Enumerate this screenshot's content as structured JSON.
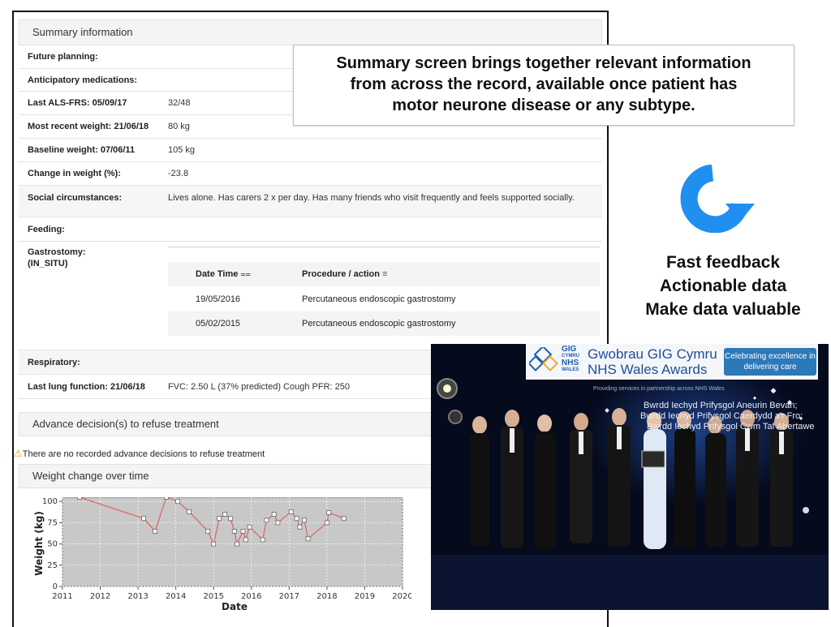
{
  "summary": {
    "title": "Summary information",
    "rows": [
      {
        "label": "Future planning:",
        "value": ""
      },
      {
        "label": "Anticipatory medications:",
        "value": ""
      },
      {
        "label": "Last ALS-FRS: 05/09/17",
        "value": "32/48"
      },
      {
        "label": "Most recent weight: 21/06/18",
        "value": "80 kg"
      },
      {
        "label": "Baseline weight: 07/06/11",
        "value": "105 kg"
      },
      {
        "label": "Change in weight (%):",
        "value": "-23.8"
      },
      {
        "label": "Social circumstances:",
        "value": "Lives alone. Has carers 2 x per day. Has many friends who visit frequently and feels supported socially."
      },
      {
        "label": "Feeding:",
        "value": ""
      }
    ],
    "gastrostomy": {
      "label": "Gastrostomy:",
      "sublabel": "(IN_SITU)",
      "columns": [
        "Date Time",
        "Procedure / action"
      ],
      "sort_icon_1": "⩵",
      "sort_icon_2": "≡",
      "rows": [
        {
          "date": "19/05/2016",
          "procedure": "Percutaneous endoscopic gastrostomy"
        },
        {
          "date": "05/02/2015",
          "procedure": "Percutaneous endoscopic gastrostomy"
        }
      ]
    },
    "respiratory": {
      "label": "Respiratory:",
      "value": ""
    },
    "lung": {
      "label": "Last lung function: 21/06/18",
      "value": "FVC: 2.50 L (37% predicted) Cough PFR: 250"
    }
  },
  "advance": {
    "title": "Advance decision(s) to refuse treatment",
    "warning": "There are no recorded advance decisions to refuse treatment"
  },
  "weight_chart": {
    "title": "Weight change over time"
  },
  "chart_data": {
    "type": "line",
    "title": "",
    "xlabel": "Date",
    "ylabel": "Weight (kg)",
    "xlim": [
      2011,
      2020
    ],
    "ylim": [
      0,
      105
    ],
    "xticks": [
      "2011",
      "2012",
      "2013",
      "2014",
      "2015",
      "2016",
      "2017",
      "2018",
      "2019",
      "2020"
    ],
    "yticks": [
      "0",
      "25",
      "50",
      "75",
      "100"
    ],
    "grid": true,
    "series_color": "#e06060",
    "x": [
      2011.45,
      2013.15,
      2013.45,
      2013.75,
      2014.05,
      2014.35,
      2014.85,
      2015.0,
      2015.15,
      2015.3,
      2015.45,
      2015.55,
      2015.62,
      2015.78,
      2015.85,
      2015.95,
      2016.3,
      2016.4,
      2016.6,
      2016.7,
      2017.05,
      2017.2,
      2017.28,
      2017.4,
      2017.5,
      2018.0,
      2018.05,
      2018.45
    ],
    "y": [
      105,
      80,
      65,
      105,
      100,
      88,
      65,
      50,
      80,
      85,
      80,
      65,
      50,
      65,
      55,
      70,
      55,
      78,
      85,
      75,
      88,
      80,
      70,
      78,
      56,
      75,
      87,
      80
    ]
  },
  "callout": {
    "line1": "Summary screen brings together relevant information",
    "line2": "from across the record, available once patient has",
    "line3": "motor neurone disease or any subtype."
  },
  "bullets": [
    "Fast feedback",
    "Actionable data",
    "Make data valuable"
  ],
  "photo": {
    "logo_line1": "GIG",
    "logo_line2": "CYMRU",
    "logo_line3": "NHS",
    "logo_line4": "WALES",
    "banner_line1": "Gwobrau GIG Cymru",
    "banner_line2": "NHS Wales Awards",
    "tag_line1": "Celebrating excellence in",
    "tag_line2": "delivering care",
    "providing": "Providing services in partnership across NHS Wales",
    "screen_line1": "Bwrdd Iechyd Prifysgol Aneurin Bevan;",
    "screen_line2": "Bwrdd Iechyd Prifysgol Caerdydd a'r Fro;",
    "screen_line3": "Bwrdd Iechyd Prifysgol Cwm Taf Abertawe"
  }
}
